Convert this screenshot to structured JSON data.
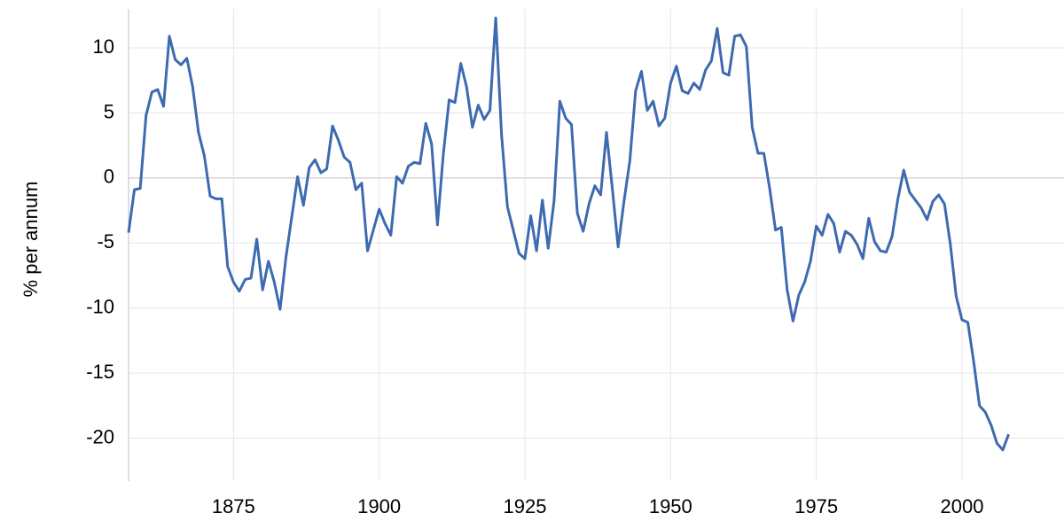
{
  "chart_data": {
    "type": "line",
    "y_label": "% per annum",
    "x": [
      1857,
      1858,
      1859,
      1860,
      1861,
      1862,
      1863,
      1864,
      1865,
      1866,
      1867,
      1868,
      1869,
      1870,
      1871,
      1872,
      1873,
      1874,
      1875,
      1876,
      1877,
      1878,
      1879,
      1880,
      1881,
      1882,
      1883,
      1884,
      1885,
      1886,
      1887,
      1888,
      1889,
      1890,
      1891,
      1892,
      1893,
      1894,
      1895,
      1896,
      1897,
      1898,
      1899,
      1900,
      1901,
      1902,
      1903,
      1904,
      1905,
      1906,
      1907,
      1908,
      1909,
      1910,
      1911,
      1912,
      1913,
      1914,
      1915,
      1916,
      1917,
      1918,
      1919,
      1920,
      1921,
      1922,
      1923,
      1924,
      1925,
      1926,
      1927,
      1928,
      1929,
      1930,
      1931,
      1932,
      1933,
      1934,
      1935,
      1936,
      1937,
      1938,
      1939,
      1940,
      1941,
      1942,
      1943,
      1944,
      1945,
      1946,
      1947,
      1948,
      1949,
      1950,
      1951,
      1952,
      1953,
      1954,
      1955,
      1956,
      1957,
      1958,
      1959,
      1960,
      1961,
      1962,
      1963,
      1964,
      1965,
      1966,
      1967,
      1968,
      1969,
      1970,
      1971,
      1972,
      1973,
      1974,
      1975,
      1976,
      1977,
      1978,
      1979,
      1980,
      1981,
      1982,
      1983,
      1984,
      1985,
      1986,
      1987,
      1988,
      1989,
      1990,
      1991,
      1992,
      1993,
      1994,
      1995,
      1996,
      1997,
      1998,
      1999,
      2000,
      2001,
      2002,
      2003,
      2004,
      2005,
      2006,
      2007,
      2008
    ],
    "series": [
      {
        "color": "#3d6ab0",
        "values": [
          -4.2,
          -0.9,
          -0.8,
          4.8,
          6.6,
          6.8,
          5.5,
          10.9,
          9.1,
          8.7,
          9.2,
          7.0,
          3.5,
          1.7,
          -1.4,
          -1.6,
          -1.6,
          -6.8,
          -8.0,
          -8.7,
          -7.8,
          -7.7,
          -4.7,
          -8.6,
          -6.4,
          -8.0,
          -10.1,
          -6.1,
          -3.0,
          0.1,
          -2.1,
          0.8,
          1.4,
          0.4,
          0.7,
          4.0,
          2.9,
          1.6,
          1.2,
          -0.9,
          -0.4,
          -5.6,
          -4.0,
          -2.4,
          -3.5,
          -4.4,
          0.1,
          -0.4,
          0.9,
          1.2,
          1.1,
          4.2,
          2.6,
          -3.6,
          1.8,
          6.0,
          5.8,
          8.8,
          7.0,
          3.9,
          5.6,
          4.5,
          5.2,
          12.3,
          3.3,
          -2.2,
          -4.0,
          -5.8,
          -6.2,
          -2.9,
          -5.6,
          -1.7,
          -5.4,
          -1.8,
          5.9,
          4.6,
          4.1,
          -2.7,
          -4.1,
          -2.0,
          -0.6,
          -1.3,
          3.5,
          -0.8,
          -5.3,
          -1.8,
          1.3,
          6.7,
          8.2,
          5.2,
          5.9,
          4.0,
          4.6,
          7.3,
          8.6,
          6.7,
          6.5,
          7.3,
          6.8,
          8.3,
          9.0,
          11.5,
          8.1,
          7.9,
          10.9,
          11.0,
          10.1,
          3.9,
          1.9,
          1.9,
          -0.8,
          -4.0,
          -3.8,
          -8.6,
          -11.0,
          -9.0,
          -8.0,
          -6.4,
          -3.7,
          -4.4,
          -2.8,
          -3.5,
          -5.7,
          -4.1,
          -4.4,
          -5.1,
          -6.2,
          -3.1,
          -4.9,
          -5.6,
          -5.7,
          -4.5,
          -1.6,
          0.6,
          -1.1,
          -1.7,
          -2.3,
          -3.2,
          -1.8,
          -1.3,
          -2.0,
          -5.1,
          -9.1,
          -10.9,
          -11.1,
          -14.1,
          -17.5,
          -18.0,
          -19.0,
          -20.4,
          -20.9,
          -19.7
        ]
      }
    ],
    "xlim": [
      1857,
      2017.5
    ],
    "ylim": [
      -23.3,
      13
    ],
    "xticks": [
      1875,
      1900,
      1925,
      1950,
      1975,
      2000
    ],
    "yticks": [
      10,
      5,
      0,
      -5,
      -10,
      -15,
      -20
    ],
    "grid": true
  }
}
